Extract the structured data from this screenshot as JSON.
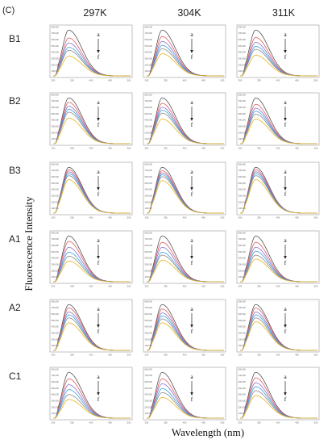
{
  "panel_label": "(C)",
  "columns": [
    "297K",
    "304K",
    "311K"
  ],
  "rows": [
    "B1",
    "B2",
    "B3",
    "A1",
    "A2",
    "C1"
  ],
  "ylabel": "Fluorescence Intensity",
  "xlabel": "Wavelength (nm)",
  "arrow_start": "a",
  "arrow_end": "f",
  "series_colors": [
    "#555555",
    "#e05a5a",
    "#8a6fd1",
    "#3aa0d8",
    "#8a8a8a",
    "#e6b422"
  ],
  "chart_data": {
    "type": "line",
    "description_of_grid": "6 rows x 3 columns of small emission spectra",
    "x_range": [
      300,
      500
    ],
    "x_ticks": [
      "300",
      "350",
      "400",
      "450",
      "500"
    ],
    "y_ticks": [
      "100,000",
      "200,000",
      "300,000",
      "400,000",
      "500,000",
      "600,000",
      "700,000",
      "800,000"
    ],
    "peak_wavelength": 340,
    "curves_per_panel": [
      "a",
      "b",
      "c",
      "d",
      "e",
      "f"
    ],
    "peak_scale": {
      "B1": [
        [
          0.93,
          0.77,
          0.67,
          0.58,
          0.52,
          0.4
        ],
        [
          0.93,
          0.8,
          0.7,
          0.62,
          0.55,
          0.45
        ],
        [
          0.93,
          0.78,
          0.68,
          0.6,
          0.54,
          0.42
        ]
      ],
      "B2": [
        [
          0.93,
          0.84,
          0.76,
          0.7,
          0.64,
          0.52
        ],
        [
          0.93,
          0.82,
          0.74,
          0.68,
          0.62,
          0.5
        ],
        [
          0.93,
          0.8,
          0.72,
          0.66,
          0.6,
          0.5
        ]
      ],
      "B3": [
        [
          0.93,
          0.88,
          0.84,
          0.8,
          0.76,
          0.68
        ],
        [
          0.93,
          0.86,
          0.82,
          0.78,
          0.74,
          0.66
        ],
        [
          0.93,
          0.88,
          0.84,
          0.8,
          0.76,
          0.68
        ]
      ],
      "A1": [
        [
          0.93,
          0.82,
          0.7,
          0.6,
          0.52,
          0.42
        ],
        [
          0.93,
          0.8,
          0.7,
          0.6,
          0.54,
          0.44
        ],
        [
          0.93,
          0.8,
          0.7,
          0.62,
          0.54,
          0.46
        ]
      ],
      "A2": [
        [
          0.93,
          0.86,
          0.78,
          0.72,
          0.66,
          0.56
        ],
        [
          0.93,
          0.84,
          0.76,
          0.7,
          0.64,
          0.56
        ],
        [
          0.93,
          0.86,
          0.78,
          0.72,
          0.66,
          0.58
        ]
      ],
      "C1": [
        [
          0.93,
          0.8,
          0.68,
          0.58,
          0.48,
          0.38
        ],
        [
          0.93,
          0.8,
          0.7,
          0.6,
          0.52,
          0.42
        ],
        [
          0.93,
          0.82,
          0.72,
          0.64,
          0.56,
          0.46
        ]
      ]
    }
  }
}
